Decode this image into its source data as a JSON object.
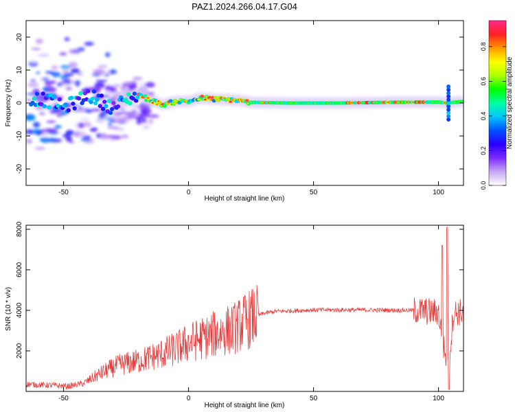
{
  "title": "PAZ1.2024.266.04.17.G04",
  "chart_data": [
    {
      "type": "heatmap",
      "xlabel": "Height of straight line (km)",
      "ylabel": "Frequency (Hz)",
      "xlim": [
        -65,
        110
      ],
      "ylim": [
        -25,
        25
      ],
      "xticks": [
        -50,
        0,
        50,
        100
      ],
      "yticks": [
        -20,
        -10,
        0,
        10,
        20
      ],
      "colorbar": {
        "label": "Normalized spectral amplitude",
        "range": [
          0,
          0.95
        ],
        "ticks": [
          "0.0",
          "0.2",
          "0.4",
          "0.6",
          "0.8"
        ],
        "colors": [
          "#ffffff",
          "#c7a8f2",
          "#7a2bff",
          "#2a00ff",
          "#0050ff",
          "#00c8ff",
          "#00ffa0",
          "#00ff00",
          "#b0ff00",
          "#ffff00",
          "#ff9a00",
          "#ff2020",
          "#ff2a8c"
        ]
      },
      "ridge": [
        {
          "x": -62,
          "y": 1.5
        },
        {
          "x": -55,
          "y": 0.5
        },
        {
          "x": -50,
          "y": -1.5
        },
        {
          "x": -45,
          "y": 0.5
        },
        {
          "x": -40,
          "y": 2.5
        },
        {
          "x": -35,
          "y": 0.5
        },
        {
          "x": -30,
          "y": -1.5
        },
        {
          "x": -25,
          "y": 1.0
        },
        {
          "x": -20,
          "y": 2.5
        },
        {
          "x": -15,
          "y": 0.8
        },
        {
          "x": -10,
          "y": -0.5
        },
        {
          "x": -5,
          "y": 0.5
        },
        {
          "x": 0,
          "y": 0.5
        },
        {
          "x": 5,
          "y": 1.5
        },
        {
          "x": 10,
          "y": 1.2
        },
        {
          "x": 20,
          "y": 0.8
        },
        {
          "x": 25,
          "y": 0.2
        },
        {
          "x": 40,
          "y": 0.0
        },
        {
          "x": 60,
          "y": 0.0
        },
        {
          "x": 80,
          "y": 0.2
        },
        {
          "x": 100,
          "y": 0.3
        },
        {
          "x": 103,
          "y": 0.0
        },
        {
          "x": 110,
          "y": 0.5
        }
      ]
    },
    {
      "type": "line",
      "xlabel": "Height of straight line (km)",
      "ylabel": "SNR (10 * v/v)",
      "xlim": [
        -65,
        110
      ],
      "ylim": [
        0,
        8200
      ],
      "xticks": [
        -50,
        0,
        50,
        100
      ],
      "yticks": [
        2000,
        4000,
        6000,
        8000
      ],
      "color": "#e83a3a",
      "trend": [
        {
          "x": -65,
          "y": 350
        },
        {
          "x": -55,
          "y": 300
        },
        {
          "x": -48,
          "y": 250
        },
        {
          "x": -42,
          "y": 400
        },
        {
          "x": -35,
          "y": 900
        },
        {
          "x": -28,
          "y": 1300
        },
        {
          "x": -20,
          "y": 1500
        },
        {
          "x": -12,
          "y": 1800
        },
        {
          "x": -5,
          "y": 2100
        },
        {
          "x": 0,
          "y": 2400
        },
        {
          "x": 5,
          "y": 2600
        },
        {
          "x": 10,
          "y": 2800
        },
        {
          "x": 18,
          "y": 3100
        },
        {
          "x": 25,
          "y": 3600
        },
        {
          "x": 30,
          "y": 3850
        },
        {
          "x": 35,
          "y": 3950
        },
        {
          "x": 50,
          "y": 4020
        },
        {
          "x": 70,
          "y": 4020
        },
        {
          "x": 90,
          "y": 4000
        },
        {
          "x": 95,
          "y": 3950
        },
        {
          "x": 100,
          "y": 3900
        },
        {
          "x": 102,
          "y": 2200
        },
        {
          "x": 104,
          "y": 1200
        },
        {
          "x": 106,
          "y": 3900
        },
        {
          "x": 110,
          "y": 3900
        }
      ],
      "peaks": [
        {
          "x": 101.5,
          "y": 7200
        },
        {
          "x": 103.5,
          "y": 8100
        },
        {
          "x": 104.2,
          "y": 100
        }
      ]
    }
  ]
}
